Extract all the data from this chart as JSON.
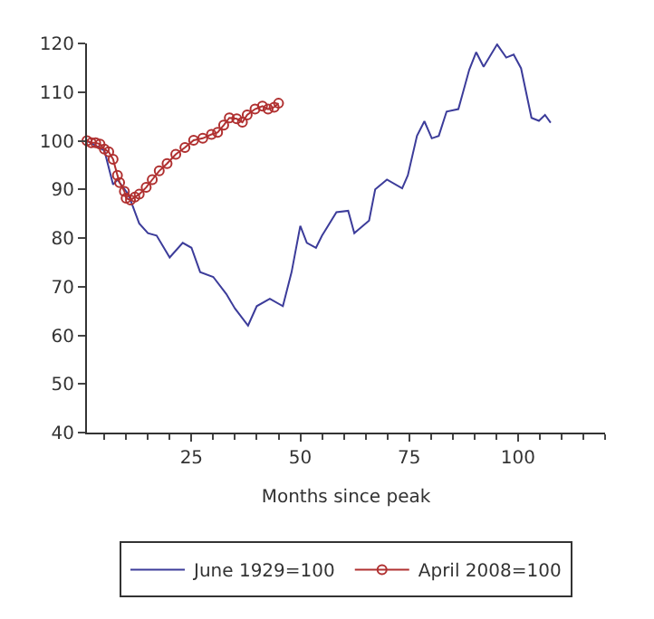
{
  "chart_data": {
    "type": "line",
    "xlabel": "Months since peak",
    "xlim": [
      1,
      120
    ],
    "xticks": [
      25,
      50,
      75,
      100
    ],
    "ylim": [
      40,
      120
    ],
    "yticks": [
      40,
      50,
      60,
      70,
      80,
      90,
      100,
      110,
      120
    ],
    "legend": "bottom",
    "series": [
      {
        "name": "June 1929=100",
        "color": "#3c3c9a",
        "marker": "none",
        "x": [
          1,
          5,
          7,
          8,
          10.5,
          13,
          15,
          17,
          20,
          23,
          25,
          27,
          30,
          33,
          35,
          38,
          40,
          43,
          46,
          48,
          50,
          51.5,
          53.6,
          55,
          58.3,
          61,
          62.4,
          65.8,
          67.2,
          69.9,
          73.4,
          74.7,
          76.8,
          78.5,
          80.2,
          81.8,
          83.6,
          86.3,
          88.8,
          90.4,
          92.1,
          95.2,
          97.3,
          99,
          100.7,
          103.1,
          104.8,
          106.2,
          107.5
        ],
        "values": [
          100,
          98,
          91,
          92,
          89,
          83,
          81,
          80.5,
          76,
          79,
          78,
          73,
          72,
          68.5,
          65.5,
          62,
          66,
          67.5,
          66,
          73,
          82.5,
          79,
          78,
          80.5,
          85.3,
          85.6,
          81,
          83.6,
          90,
          92,
          90.2,
          92.9,
          101,
          104,
          100.5,
          101,
          106,
          106.5,
          114.6,
          118.2,
          115.2,
          119.8,
          117.1,
          117.7,
          114.9,
          104.7,
          104.1,
          105.3,
          103.7
        ]
      },
      {
        "name": "April 2008=100",
        "color": "#b03030",
        "marker": "circle",
        "x": [
          1,
          2,
          3,
          4,
          5,
          6,
          7,
          8,
          8.5,
          9.6,
          10,
          11,
          12,
          13,
          14.6,
          16,
          17.6,
          19.4,
          21.4,
          23.5,
          25.5,
          27.6,
          29.6,
          31,
          32.4,
          33.7,
          35.4,
          36.7,
          37.8,
          39.6,
          41.3,
          42.6,
          44,
          45
        ],
        "values": [
          100,
          99.6,
          99.6,
          99.3,
          98.3,
          97.7,
          96.2,
          92.9,
          91.4,
          89.6,
          88.2,
          87.8,
          88.4,
          89,
          90.4,
          92,
          93.8,
          95.3,
          97.2,
          98.6,
          100.1,
          100.5,
          101.3,
          101.7,
          103.2,
          104.7,
          104.5,
          103.8,
          105.3,
          106.5,
          107.1,
          106.5,
          106.9,
          107.7
        ]
      }
    ]
  }
}
